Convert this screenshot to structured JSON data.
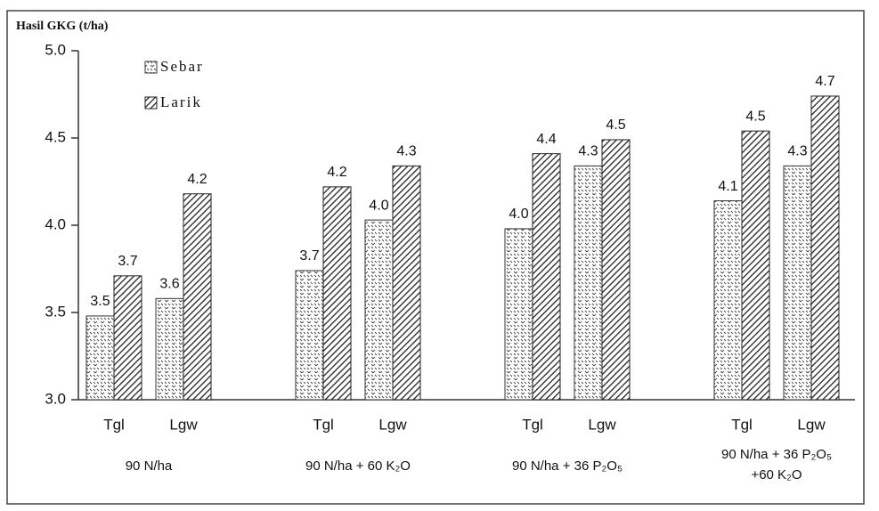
{
  "chart_data": {
    "type": "bar",
    "y_label": "Hasil GKG (t/ha)",
    "categories": [
      "Tgl",
      "Lgw",
      "Tgl",
      "Lgw",
      "Tgl",
      "Lgw",
      "Tgl",
      "Lgw"
    ],
    "groups": [
      [
        "90 N/ha"
      ],
      [
        "90 N/ha + 60 K₂O"
      ],
      [
        "90 N/ha + 36 P₂O₅"
      ],
      [
        "90 N/ha + 36 P₂O₅",
        "+60 K₂O"
      ]
    ],
    "series": [
      {
        "name": "Sebar",
        "color": "#333333",
        "pattern": "dots",
        "values": [
          3.48,
          3.58,
          3.74,
          4.03,
          3.98,
          4.34,
          4.14,
          4.34
        ],
        "value_labels": [
          "3.5",
          "3.6",
          "3.7",
          "4.0",
          "4.0",
          "4.3",
          "4.1",
          "4.3"
        ]
      },
      {
        "name": "Larik",
        "color": "#222222",
        "pattern": "hatch",
        "values": [
          3.71,
          4.18,
          4.22,
          4.34,
          4.41,
          4.49,
          4.54,
          4.74
        ],
        "value_labels": [
          "3.7",
          "4.2",
          "4.2",
          "4.3",
          "4.4",
          "4.5",
          "4.5",
          "4.7"
        ]
      }
    ],
    "ylim": [
      3,
      5
    ],
    "yticks": [
      {
        "value": 3,
        "label": "3.0"
      },
      {
        "value": 3.5,
        "label": "3.5"
      },
      {
        "value": 4,
        "label": "4.0"
      },
      {
        "value": 4.5,
        "label": "4.5"
      },
      {
        "value": 5,
        "label": "5.0"
      }
    ],
    "legend": "upper left"
  }
}
